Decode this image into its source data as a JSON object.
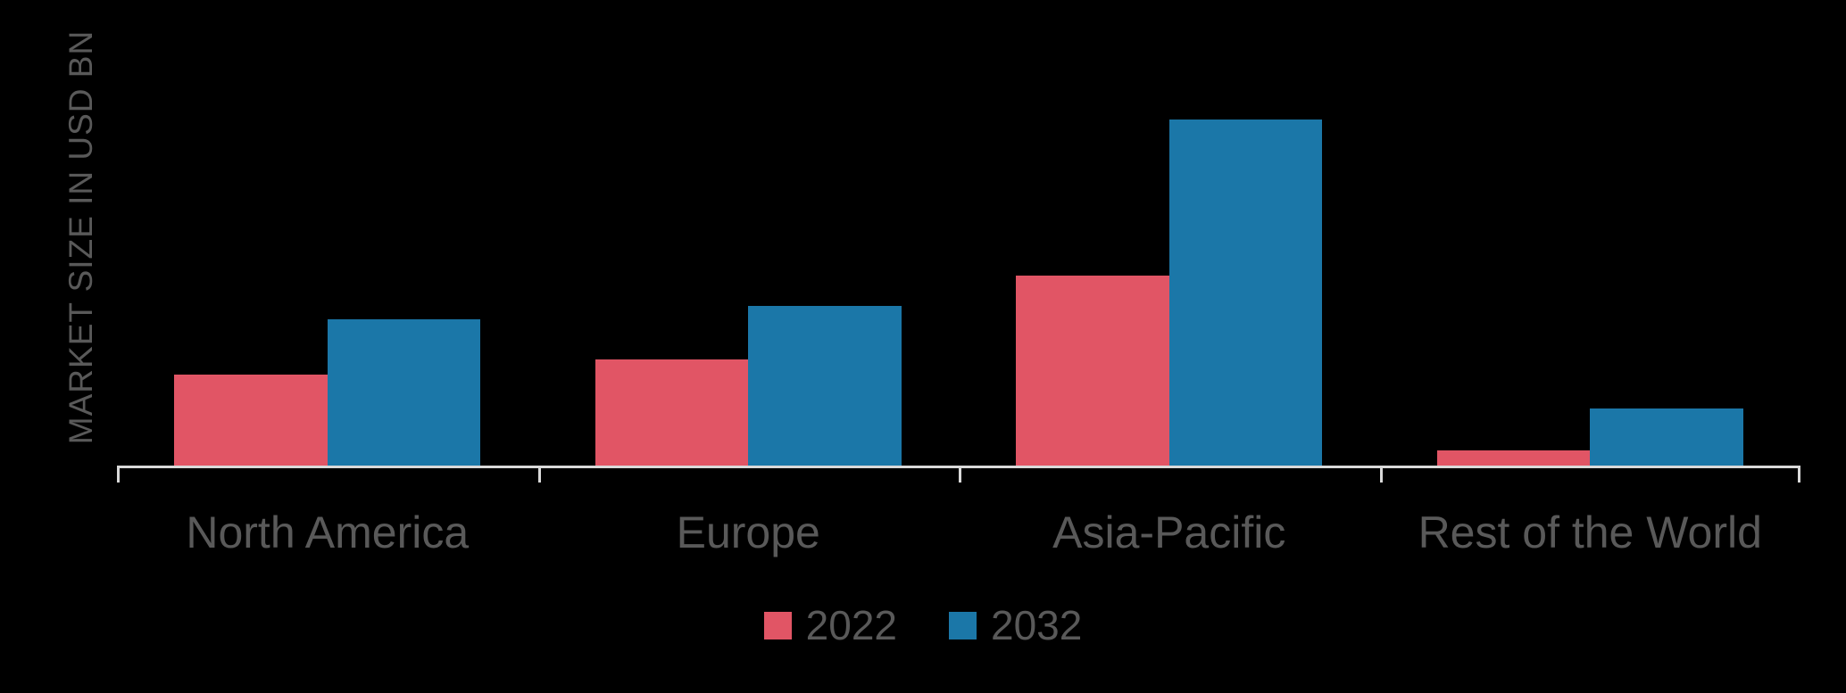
{
  "chart_data": {
    "type": "bar",
    "title": "",
    "xlabel": "",
    "ylabel": "MARKET SIZE IN USD BN",
    "categories": [
      "North America",
      "Europe",
      "Asia-Pacific",
      "Rest of the World"
    ],
    "series": [
      {
        "name": "2022",
        "color": "#e15565",
        "values": [
          1.04,
          1.21,
          2.15,
          0.19
        ]
      },
      {
        "name": "2032",
        "color": "#1b77a8",
        "values": [
          1.66,
          1.81,
          3.9,
          0.66
        ]
      }
    ],
    "ylim": [
      0,
      4.2
    ],
    "grid": false,
    "legend_position": "bottom",
    "colors": {
      "background": "#000000",
      "text": "#595959",
      "axis_line": "#d9d9d9"
    }
  }
}
